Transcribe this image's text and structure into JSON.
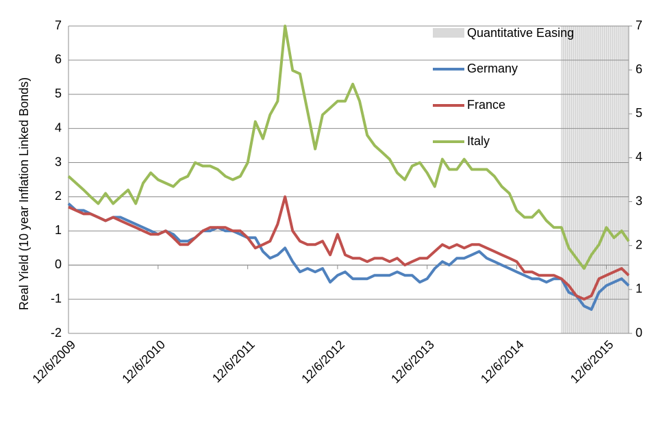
{
  "chart_data": {
    "type": "line",
    "y_label": "Real Yield (10 year Inflation Linked Bonds)",
    "x": [
      "12/6/2009",
      "1/6/2010",
      "2/6/2010",
      "3/6/2010",
      "4/6/2010",
      "5/6/2010",
      "6/6/2010",
      "7/6/2010",
      "8/6/2010",
      "9/6/2010",
      "10/6/2010",
      "11/6/2010",
      "12/6/2010",
      "1/6/2011",
      "2/6/2011",
      "3/6/2011",
      "4/6/2011",
      "5/6/2011",
      "6/6/2011",
      "7/6/2011",
      "8/6/2011",
      "9/6/2011",
      "10/6/2011",
      "11/6/2011",
      "12/6/2011",
      "1/6/2012",
      "2/6/2012",
      "3/6/2012",
      "4/6/2012",
      "5/6/2012",
      "6/6/2012",
      "7/6/2012",
      "8/6/2012",
      "9/6/2012",
      "10/6/2012",
      "11/6/2012",
      "12/6/2012",
      "1/6/2013",
      "2/6/2013",
      "3/6/2013",
      "4/6/2013",
      "5/6/2013",
      "6/6/2013",
      "7/6/2013",
      "8/6/2013",
      "9/6/2013",
      "10/6/2013",
      "11/6/2013",
      "12/6/2013",
      "1/6/2014",
      "2/6/2014",
      "3/6/2014",
      "4/6/2014",
      "5/6/2014",
      "6/6/2014",
      "7/6/2014",
      "8/6/2014",
      "9/6/2014",
      "10/6/2014",
      "11/6/2014",
      "12/6/2014",
      "1/6/2015",
      "2/6/2015",
      "3/6/2015",
      "4/6/2015",
      "5/6/2015",
      "6/6/2015",
      "7/6/2015",
      "8/6/2015",
      "9/6/2015",
      "10/6/2015",
      "11/6/2015",
      "12/6/2015",
      "1/6/2016",
      "2/6/2016",
      "3/6/2016"
    ],
    "series": [
      {
        "name": "Germany",
        "color": "#4f81bd",
        "values": [
          1.8,
          1.6,
          1.6,
          1.5,
          1.4,
          1.3,
          1.4,
          1.4,
          1.3,
          1.2,
          1.1,
          1.0,
          0.9,
          1.0,
          0.9,
          0.7,
          0.7,
          0.8,
          1.0,
          1.0,
          1.1,
          1.0,
          1.0,
          0.9,
          0.8,
          0.8,
          0.4,
          0.2,
          0.3,
          0.5,
          0.1,
          -0.2,
          -0.1,
          -0.2,
          -0.1,
          -0.5,
          -0.3,
          -0.2,
          -0.4,
          -0.4,
          -0.4,
          -0.3,
          -0.3,
          -0.3,
          -0.2,
          -0.3,
          -0.3,
          -0.5,
          -0.4,
          -0.1,
          0.1,
          0.0,
          0.2,
          0.2,
          0.3,
          0.4,
          0.2,
          0.1,
          0.0,
          -0.1,
          -0.2,
          -0.3,
          -0.4,
          -0.4,
          -0.5,
          -0.4,
          -0.4,
          -0.8,
          -0.9,
          -1.2,
          -1.3,
          -0.8,
          -0.6,
          -0.5,
          -0.4,
          -0.6
        ]
      },
      {
        "name": "France",
        "color": "#c0504d",
        "values": [
          1.7,
          1.6,
          1.5,
          1.5,
          1.4,
          1.3,
          1.4,
          1.3,
          1.2,
          1.1,
          1.0,
          0.9,
          0.9,
          1.0,
          0.8,
          0.6,
          0.6,
          0.8,
          1.0,
          1.1,
          1.1,
          1.1,
          1.0,
          1.0,
          0.8,
          0.5,
          0.6,
          0.7,
          1.2,
          2.0,
          1.0,
          0.7,
          0.6,
          0.6,
          0.7,
          0.3,
          0.9,
          0.3,
          0.2,
          0.2,
          0.1,
          0.2,
          0.2,
          0.1,
          0.2,
          0.0,
          0.1,
          0.2,
          0.2,
          0.4,
          0.6,
          0.5,
          0.6,
          0.5,
          0.6,
          0.6,
          0.5,
          0.4,
          0.3,
          0.2,
          0.1,
          -0.2,
          -0.2,
          -0.3,
          -0.3,
          -0.3,
          -0.4,
          -0.6,
          -0.9,
          -1.0,
          -0.9,
          -0.4,
          -0.3,
          -0.2,
          -0.1,
          -0.3
        ]
      },
      {
        "name": "Italy",
        "color": "#9bbb59",
        "values": [
          2.6,
          2.4,
          2.2,
          2.0,
          1.8,
          2.1,
          1.8,
          2.0,
          2.2,
          1.8,
          2.4,
          2.7,
          2.5,
          2.4,
          2.3,
          2.5,
          2.6,
          3.0,
          2.9,
          2.9,
          2.8,
          2.6,
          2.5,
          2.6,
          3.0,
          4.2,
          3.7,
          4.4,
          4.8,
          7.0,
          5.7,
          5.6,
          4.5,
          3.4,
          4.4,
          4.6,
          4.8,
          4.8,
          5.3,
          4.8,
          3.8,
          3.5,
          3.3,
          3.1,
          2.7,
          2.5,
          2.9,
          3.0,
          2.7,
          2.3,
          3.1,
          2.8,
          2.8,
          3.1,
          2.8,
          2.8,
          2.8,
          2.6,
          2.3,
          2.1,
          1.6,
          1.4,
          1.4,
          1.6,
          1.3,
          1.1,
          1.1,
          0.5,
          0.2,
          -0.1,
          0.3,
          0.6,
          1.1,
          0.8,
          1.0,
          0.7
        ]
      }
    ],
    "shaded_region": {
      "label": "Quantitative Easing",
      "color": "#d9d9d9",
      "x": [
        "6/6/2015",
        "3/6/2016"
      ]
    },
    "xlim": [
      "12/6/2009",
      "3/6/2016"
    ],
    "xticks": [
      "12/6/2009",
      "12/6/2010",
      "12/6/2011",
      "12/6/2012",
      "12/6/2013",
      "12/6/2014",
      "12/6/2015"
    ],
    "ylim": [
      -2,
      7
    ],
    "yticks": [
      -2,
      -1,
      0,
      1,
      2,
      3,
      4,
      5,
      6,
      7
    ],
    "y2lim": [
      0,
      7
    ],
    "y2ticks": [
      0,
      1,
      2,
      3,
      4,
      5,
      6,
      7
    ],
    "grid": true,
    "legend": "top-right"
  }
}
